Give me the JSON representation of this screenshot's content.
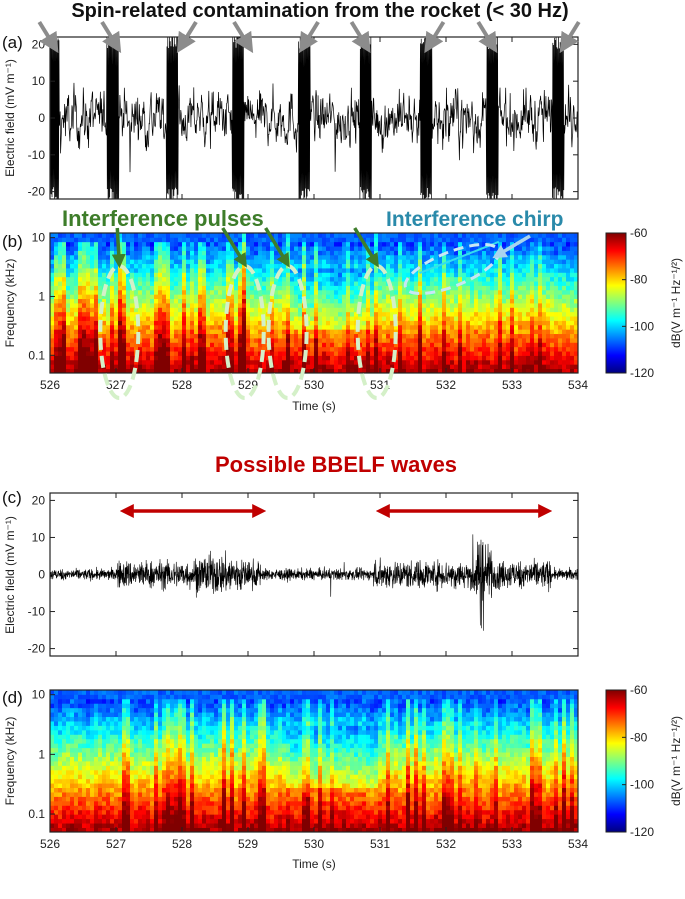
{
  "chart_data": [
    {
      "panel": "(a)",
      "type": "line",
      "title": "",
      "xlabel": "",
      "ylabel": "Electric field (mV m⁻¹)",
      "xlim": [
        526,
        534
      ],
      "ylim": [
        -22,
        22
      ],
      "yticks": [
        -20,
        -10,
        0,
        10,
        20
      ],
      "xticks": [
        526,
        527,
        528,
        529,
        530,
        531,
        532,
        533,
        534
      ],
      "grid": false,
      "series": [
        {
          "description": "raw electric field; broadband noise about ±8 mV/m with saturated spin-related bursts",
          "burst_centers_s": [
            526.05,
            526.95,
            527.85,
            528.85,
            529.85,
            530.78,
            531.7,
            532.7,
            533.7
          ],
          "burst_amplitude_mV_per_m": 22,
          "noise_amplitude_mV_per_m": 8
        }
      ],
      "annotation": "Spin-related contamination from the rocket (< 30 Hz)",
      "arrow_targets_s": [
        526.05,
        527.0,
        528.0,
        529.0,
        529.85,
        530.78,
        531.75,
        532.7,
        533.8
      ]
    },
    {
      "panel": "(b)",
      "type": "heatmap",
      "xlabel": "Time (s)",
      "ylabel": "Frequency (kHz)",
      "yscale": "log",
      "ylim_kHz": [
        0.05,
        12
      ],
      "yticks_kHz": [
        0.1,
        1,
        10
      ],
      "yticklabels": [
        "0.1",
        "1",
        "10"
      ],
      "xlim": [
        526,
        534
      ],
      "xticks": [
        526,
        527,
        528,
        529,
        530,
        531,
        532,
        533,
        534
      ],
      "colorbar": {
        "label": "dB(V m⁻¹ Hz⁻¹/²)",
        "range": [
          -120,
          -60
        ],
        "ticks": [
          -60,
          -80,
          -100,
          -120
        ]
      },
      "annotations": [
        {
          "text": "Interference pulses",
          "color": "#2e7d32",
          "pulse_times_s": [
            527.05,
            528.95,
            529.6,
            530.95
          ]
        },
        {
          "text": "Interference chirp",
          "color": "#2a8aaa",
          "chirp_start": [
            531.6,
            2.5
          ],
          "chirp_end": [
            532.8,
            8.5
          ]
        }
      ]
    },
    {
      "panel": "(c)",
      "type": "line",
      "xlabel": "",
      "ylabel": "Electric field (mV m⁻¹)",
      "xlim": [
        526,
        534
      ],
      "ylim": [
        -22,
        22
      ],
      "yticks": [
        -20,
        -10,
        0,
        10,
        20
      ],
      "xticks": [
        526,
        527,
        528,
        529,
        530,
        531,
        532,
        533,
        534
      ],
      "series": [
        {
          "description": "filtered electric field; low noise ±2 mV/m with bursts up to about ±10 mV/m",
          "active_intervals_s": [
            [
              527.0,
              529.2
            ],
            [
              530.9,
              533.6
            ]
          ],
          "peak_time_s": 532.55,
          "peak_min_mV_per_m": -19,
          "peak_max_mV_per_m": 11
        }
      ],
      "annotation": "Possible BBELF waves",
      "double_arrows_s": [
        [
          527.0,
          529.2
        ],
        [
          530.9,
          533.6
        ]
      ]
    },
    {
      "panel": "(d)",
      "type": "heatmap",
      "xlabel": "Time (s)",
      "ylabel": "Frequency (kHz)",
      "yscale": "log",
      "ylim_kHz": [
        0.05,
        12
      ],
      "yticks_kHz": [
        0.1,
        1,
        10
      ],
      "yticklabels": [
        "0.1",
        "1",
        "10"
      ],
      "xlim": [
        526,
        534
      ],
      "xticks": [
        526,
        527,
        528,
        529,
        530,
        531,
        532,
        533,
        534
      ],
      "colorbar": {
        "label": "dB(V m⁻¹ Hz⁻¹/²)",
        "range": [
          -120,
          -60
        ],
        "ticks": [
          -60,
          -80,
          -100,
          -120
        ]
      }
    }
  ],
  "text": {
    "label_a": "(a)",
    "label_b": "(b)",
    "label_c": "(c)",
    "label_d": "(d)",
    "spin_title": "Spin-related contamination from the rocket (< 30 Hz)",
    "pulses_title": "Interference pulses",
    "chirp_title": "Interference chirp",
    "bbelf_title": "Possible BBELF waves",
    "ylabel_field": "Electric field (mV m⁻¹)",
    "ylabel_freq": "Frequency (kHz)",
    "xlabel_time": "Time (s)",
    "cbar_label": "dB(V m⁻¹ Hz⁻¹/²)"
  },
  "colors": {
    "spin_arrow": "#8c8c8c",
    "pulse_arrow": "#3e7d2a",
    "pulse_ellipse": "#d4f0c8",
    "chirp_text": "#2a8aaa",
    "chirp_ellipse": "#c8e6f5",
    "bbelf": "#c00000",
    "trace": "#000000"
  }
}
